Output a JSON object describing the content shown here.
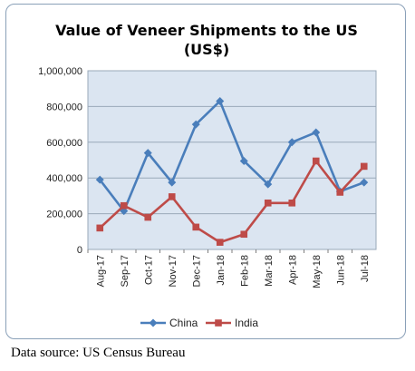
{
  "chart_data": {
    "type": "line",
    "title": "Value of Veneer Shipments to the US",
    "subtitle": "(US$)",
    "xlabel": "",
    "ylabel": "",
    "categories": [
      "Aug-17",
      "Sep-17",
      "Oct-17",
      "Nov-17",
      "Dec-17",
      "Jan-18",
      "Feb-18",
      "Mar-18",
      "Apr-18",
      "May-18",
      "Jun-18",
      "Jul-18"
    ],
    "series": [
      {
        "name": "China",
        "color": "#4a7ebb",
        "marker": "diamond",
        "values": [
          390000,
          215000,
          540000,
          375000,
          700000,
          830000,
          495000,
          365000,
          600000,
          655000,
          325000,
          375000
        ]
      },
      {
        "name": "India",
        "color": "#be4b48",
        "marker": "square",
        "values": [
          120000,
          245000,
          180000,
          295000,
          125000,
          40000,
          85000,
          260000,
          260000,
          495000,
          320000,
          465000
        ]
      }
    ],
    "ylim": [
      0,
      1000000
    ],
    "yticks": [
      0,
      200000,
      400000,
      600000,
      800000,
      1000000
    ],
    "ytick_labels": [
      "0",
      "200,000",
      "400,000",
      "600,000",
      "800,000",
      "1,000,000"
    ],
    "grid": true,
    "legend_position": "bottom",
    "plot_background": "#dbe5f1"
  },
  "source": "Data source: US Census Bureau"
}
